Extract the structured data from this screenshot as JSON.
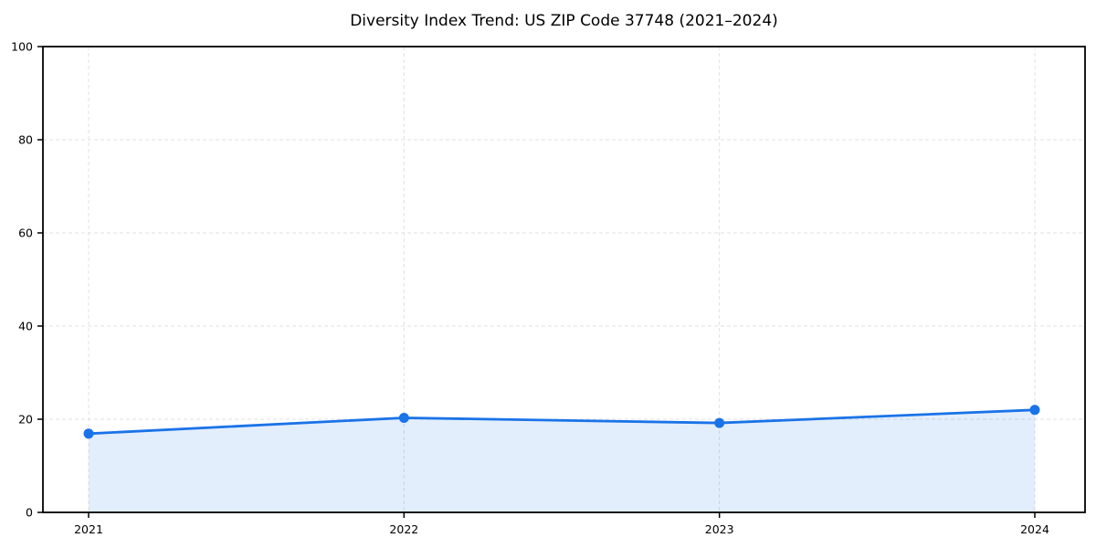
{
  "chart_data": {
    "type": "area",
    "title": "Diversity Index Trend: US ZIP Code 37748 (2021–2024)",
    "categories": [
      "2021",
      "2022",
      "2023",
      "2024"
    ],
    "series": [
      {
        "name": "Diversity Index",
        "values": [
          16.9,
          20.3,
          19.2,
          22.0
        ]
      }
    ],
    "xlabel": "",
    "ylabel": "",
    "ylim": [
      0,
      100
    ],
    "yticks": [
      0,
      20,
      40,
      60,
      80,
      100
    ],
    "grid": true,
    "grid_style": "dashed",
    "legend": false,
    "colors": {
      "line": "#1a73e8",
      "marker": "#1a73e8",
      "fill": "rgba(26,115,232,0.12)",
      "grid": "#e0e0e0",
      "spine": "#000000",
      "text": "#000000",
      "background": "#ffffff"
    }
  }
}
